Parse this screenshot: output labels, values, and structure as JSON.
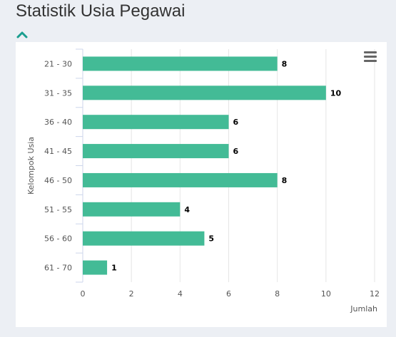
{
  "page": {
    "title": "Statistik Usia Pegawai"
  },
  "icons": {
    "toggle": "chevron-up-icon",
    "menu": "hamburger-menu-icon"
  },
  "colors": {
    "bar": "#43bb96",
    "toggle": "#1a9e8f",
    "menu": "#666666"
  },
  "chart_data": {
    "type": "bar",
    "orientation": "horizontal",
    "categories": [
      "21 - 30",
      "31 - 35",
      "36 - 40",
      "41 - 45",
      "46 - 50",
      "51 - 55",
      "56 - 60",
      "61 - 70"
    ],
    "values": [
      8,
      10,
      6,
      6,
      8,
      4,
      5,
      1
    ],
    "xlabel": "Jumlah",
    "ylabel": "Kelompok Usia",
    "xlim": [
      0,
      12
    ],
    "xticks": [
      0,
      2,
      4,
      6,
      8,
      10,
      12
    ],
    "grid": true,
    "data_labels": true
  }
}
